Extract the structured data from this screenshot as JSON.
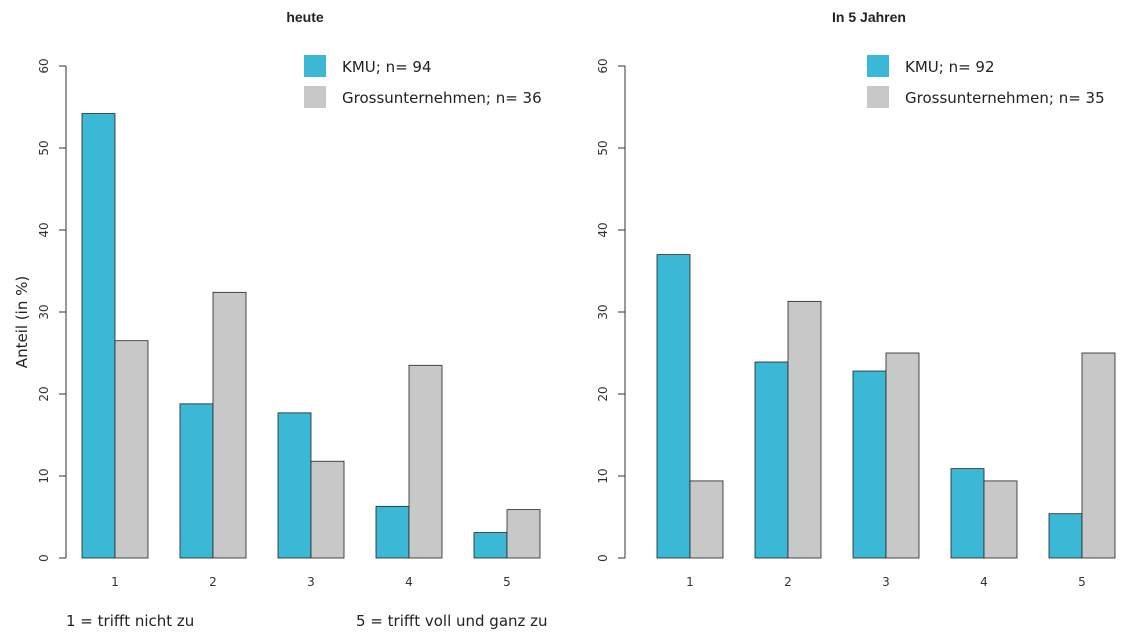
{
  "chart_data": [
    {
      "type": "bar",
      "title": "heute",
      "ylabel": "Anteil (in %)",
      "xlabel": "",
      "categories": [
        "1",
        "2",
        "3",
        "4",
        "5"
      ],
      "ylim": [
        0,
        60
      ],
      "yticks": [
        0,
        10,
        20,
        30,
        40,
        50,
        60
      ],
      "series": [
        {
          "name": "KMU; n= 94",
          "color": "#3bb8d6",
          "values": [
            54.2,
            18.8,
            17.7,
            6.3,
            3.1
          ]
        },
        {
          "name": "Grossunternehmen; n= 36",
          "color": "#c8c8c8",
          "values": [
            26.5,
            32.4,
            11.8,
            23.5,
            5.9
          ]
        }
      ],
      "legend_position": "top-right",
      "grid": false
    },
    {
      "type": "bar",
      "title": "In 5 Jahren",
      "ylabel": "",
      "xlabel": "",
      "categories": [
        "1",
        "2",
        "3",
        "4",
        "5"
      ],
      "ylim": [
        0,
        60
      ],
      "yticks": [
        0,
        10,
        20,
        30,
        40,
        50,
        60
      ],
      "series": [
        {
          "name": "KMU; n= 92",
          "color": "#3bb8d6",
          "values": [
            37.0,
            23.9,
            22.8,
            10.9,
            5.4
          ]
        },
        {
          "name": "Grossunternehmen; n= 35",
          "color": "#c8c8c8",
          "values": [
            9.4,
            31.3,
            25.0,
            9.4,
            25.0
          ]
        }
      ],
      "legend_position": "top-right",
      "grid": false
    }
  ],
  "notes": {
    "scale_low": "1 = trifft nicht zu",
    "scale_high": "5 = trifft voll und ganz zu"
  }
}
